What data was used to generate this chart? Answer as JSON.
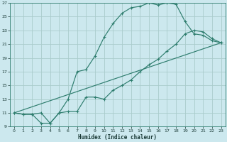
{
  "title": "",
  "xlabel": "Humidex (Indice chaleur)",
  "ylabel": "",
  "bg_color": "#cce8ee",
  "grid_color": "#aacccc",
  "line_color": "#2e7d6e",
  "xlim": [
    -0.5,
    23.5
  ],
  "ylim": [
    9,
    27
  ],
  "xticks": [
    0,
    1,
    2,
    3,
    4,
    5,
    6,
    7,
    8,
    9,
    10,
    11,
    12,
    13,
    14,
    15,
    16,
    17,
    18,
    19,
    20,
    21,
    22,
    23
  ],
  "yticks": [
    9,
    11,
    13,
    15,
    17,
    19,
    21,
    23,
    25,
    27
  ],
  "line1_x": [
    0,
    1,
    2,
    3,
    4,
    5,
    6,
    7,
    8,
    9,
    10,
    11,
    12,
    13,
    14,
    15,
    16,
    17,
    18,
    19,
    20,
    21,
    22,
    23
  ],
  "line1_y": [
    11,
    10.8,
    10.8,
    11,
    9.5,
    11,
    13,
    17,
    17.3,
    19.3,
    22,
    24,
    25.5,
    26.3,
    26.5,
    27,
    26.7,
    27,
    26.8,
    24.3,
    22.5,
    22.3,
    21.5,
    21.2
  ],
  "line2_x": [
    0,
    1,
    2,
    3,
    4,
    5,
    6,
    7,
    8,
    9,
    10,
    11,
    12,
    13,
    14,
    15,
    16,
    17,
    18,
    19,
    20,
    21,
    22,
    23
  ],
  "line2_y": [
    11,
    10.8,
    10.8,
    9.5,
    9.5,
    11,
    11.2,
    11.2,
    13.3,
    13.3,
    13,
    14.3,
    15,
    15.8,
    17,
    18,
    18.8,
    20,
    21,
    22.5,
    23,
    22.8,
    21.8,
    21.2
  ],
  "line3_x": [
    0,
    23
  ],
  "line3_y": [
    11,
    21.2
  ]
}
